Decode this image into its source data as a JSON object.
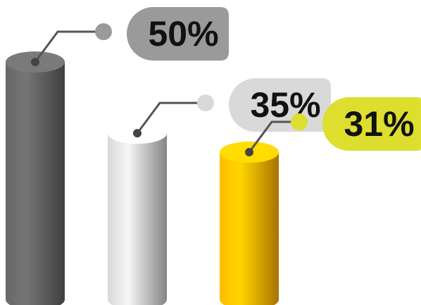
{
  "chart_data": {
    "type": "cylinder",
    "values": [
      50,
      35,
      31
    ],
    "value_labels": [
      "50%",
      "35%",
      "31%"
    ],
    "colors": [
      "#5a5a5a",
      "#bdbdbd",
      "#f0a400"
    ],
    "label_colors": [
      "#9a9a9a",
      "#d9d9d9",
      "#dede2e"
    ]
  }
}
